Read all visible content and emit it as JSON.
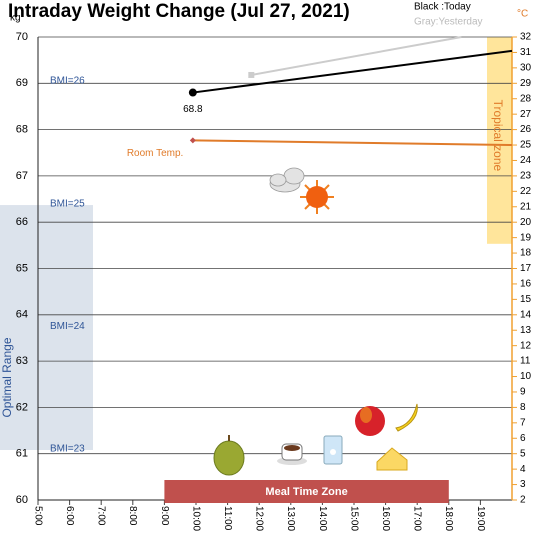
{
  "chart_data": {
    "type": "line",
    "title": "Intraday Weight Change (Jul 27, 2021)",
    "ylabel": "kg",
    "y2label": "°C",
    "xlim": [
      5,
      20
    ],
    "xticks": [
      {
        "value": 5,
        "label": "5:00"
      },
      {
        "value": 6,
        "label": "6:00"
      },
      {
        "value": 7,
        "label": "7:00"
      },
      {
        "value": 8,
        "label": "8:00"
      },
      {
        "value": 9,
        "label": "9:00"
      },
      {
        "value": 10,
        "label": "10:00"
      },
      {
        "value": 11,
        "label": "11:00"
      },
      {
        "value": 12,
        "label": "12:00"
      },
      {
        "value": 13,
        "label": "13:00"
      },
      {
        "value": 14,
        "label": "14:00"
      },
      {
        "value": 15,
        "label": "15:00"
      },
      {
        "value": 16,
        "label": "16:00"
      },
      {
        "value": 17,
        "label": "17:00"
      },
      {
        "value": 18,
        "label": "18:00"
      },
      {
        "value": 19,
        "label": "19:00"
      }
    ],
    "ylim": [
      60,
      70
    ],
    "yticks": [
      60,
      61,
      62,
      63,
      64,
      65,
      66,
      67,
      68,
      69,
      70
    ],
    "y2lim": [
      2,
      32
    ],
    "y2ticks": [
      2,
      3,
      4,
      5,
      6,
      7,
      8,
      9,
      10,
      11,
      12,
      13,
      14,
      15,
      16,
      17,
      18,
      19,
      20,
      21,
      22,
      23,
      24,
      25,
      26,
      27,
      28,
      29,
      30,
      31,
      32
    ],
    "grid": true,
    "series": [
      {
        "name": "Black :Today",
        "color": "#000000",
        "x": [
          9.9,
          20
        ],
        "values": [
          68.8,
          69.7
        ],
        "value_labels": [
          "68.8",
          null
        ]
      },
      {
        "name": "Gray:Yesterday",
        "color": "#cccccc",
        "x": [
          11.75,
          18.4
        ],
        "values": [
          69.18,
          70
        ]
      },
      {
        "name": "Room Temp.",
        "color": "#e07b2a",
        "axis": "y2",
        "x": [
          9.9,
          20
        ],
        "values": [
          25.3,
          25.0
        ]
      }
    ],
    "bmi_lines": [
      {
        "label": "BMI=26",
        "value": 69.05
      },
      {
        "label": "BMI=25",
        "value": 66.4
      },
      {
        "label": "BMI=24",
        "value": 63.75
      },
      {
        "label": "BMI=23",
        "value": 61.1
      }
    ],
    "optimal_range": {
      "label": "Optimal Range",
      "ylim": [
        61.08,
        66.37
      ],
      "color": "#dce3ec"
    },
    "tropical_zone": {
      "label": "Tropical zone",
      "y2lim": [
        18.6,
        32
      ],
      "color": "#ffe08a"
    },
    "meal_time_zone": {
      "label": "Meal Time Zone",
      "xlim": [
        9,
        18
      ],
      "color": "#c0504d"
    }
  }
}
